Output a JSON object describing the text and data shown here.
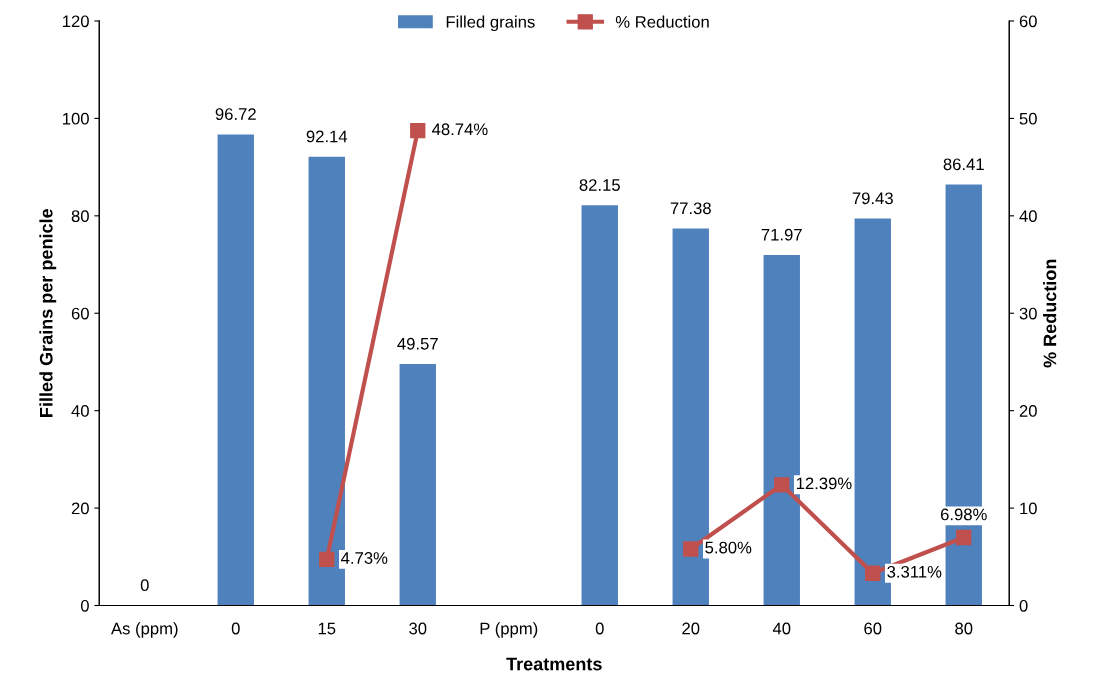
{
  "chart_data": {
    "type": "bar",
    "xlabel": "Treatments",
    "ylabel": "Filled Grains per penicle",
    "y2label": "% Reduction",
    "categories": [
      "As (ppm)",
      "0",
      "15",
      "30",
      "P (ppm)",
      "0",
      "20",
      "40",
      "60",
      "80"
    ],
    "series": [
      {
        "name": "Filled grains",
        "color": "#4f81bd",
        "values": [
          0,
          96.72,
          92.14,
          49.57,
          null,
          82.15,
          77.38,
          71.97,
          79.43,
          86.41
        ],
        "value_labels": [
          "0",
          "96.72",
          "92.14",
          "49.57",
          null,
          "82.15",
          "77.38",
          "71.97",
          "79.43",
          "86.41"
        ]
      },
      {
        "name": "% Reduction",
        "type": "line",
        "axis": "y2",
        "color": "#c0504d",
        "marker": "square",
        "values": [
          null,
          null,
          4.73,
          48.74,
          null,
          null,
          5.8,
          12.39,
          3.311,
          6.98
        ],
        "value_labels": [
          null,
          null,
          "4.73%",
          "48.74%",
          null,
          null,
          "5.80%",
          "12.39%",
          "3.311%",
          "6.98%"
        ]
      }
    ],
    "ylim": [
      0,
      120
    ],
    "yticks": [
      0,
      20,
      40,
      60,
      80,
      100,
      120
    ],
    "y2lim": [
      0,
      60
    ],
    "y2ticks": [
      0,
      10,
      20,
      30,
      40,
      50,
      60
    ],
    "legend": "top",
    "grid": false
  }
}
